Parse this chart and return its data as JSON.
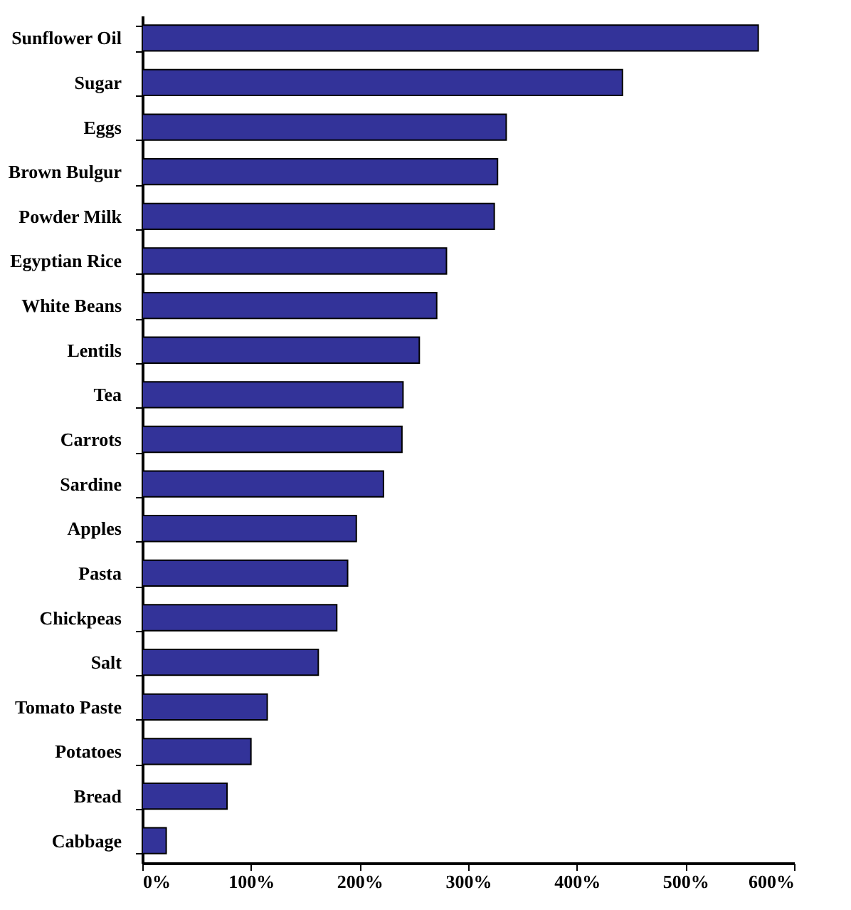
{
  "chart_data": {
    "type": "bar",
    "orientation": "horizontal",
    "categories": [
      "Sunflower Oil",
      "Sugar",
      "Eggs",
      "Brown Bulgur",
      "Powder Milk",
      "Egyptian Rice",
      "White Beans",
      "Lentils",
      "Tea",
      "Carrots",
      "Sardine",
      "Apples",
      "Pasta",
      "Chickpeas",
      "Salt",
      "Tomato Paste",
      "Potatoes",
      "Bread",
      "Cabbage"
    ],
    "values": [
      567,
      442,
      335,
      327,
      324,
      280,
      271,
      255,
      240,
      239,
      222,
      197,
      189,
      179,
      162,
      115,
      100,
      78,
      22
    ],
    "color": "#333399",
    "xlim": [
      0,
      600
    ],
    "xticks": [
      {
        "value": 0,
        "label": "0%"
      },
      {
        "value": 100,
        "label": "100%"
      },
      {
        "value": 200,
        "label": "200%"
      },
      {
        "value": 300,
        "label": "300%"
      },
      {
        "value": 400,
        "label": "400%"
      },
      {
        "value": 500,
        "label": "500%"
      },
      {
        "value": 600,
        "label": "600%"
      }
    ],
    "grid": false
  }
}
